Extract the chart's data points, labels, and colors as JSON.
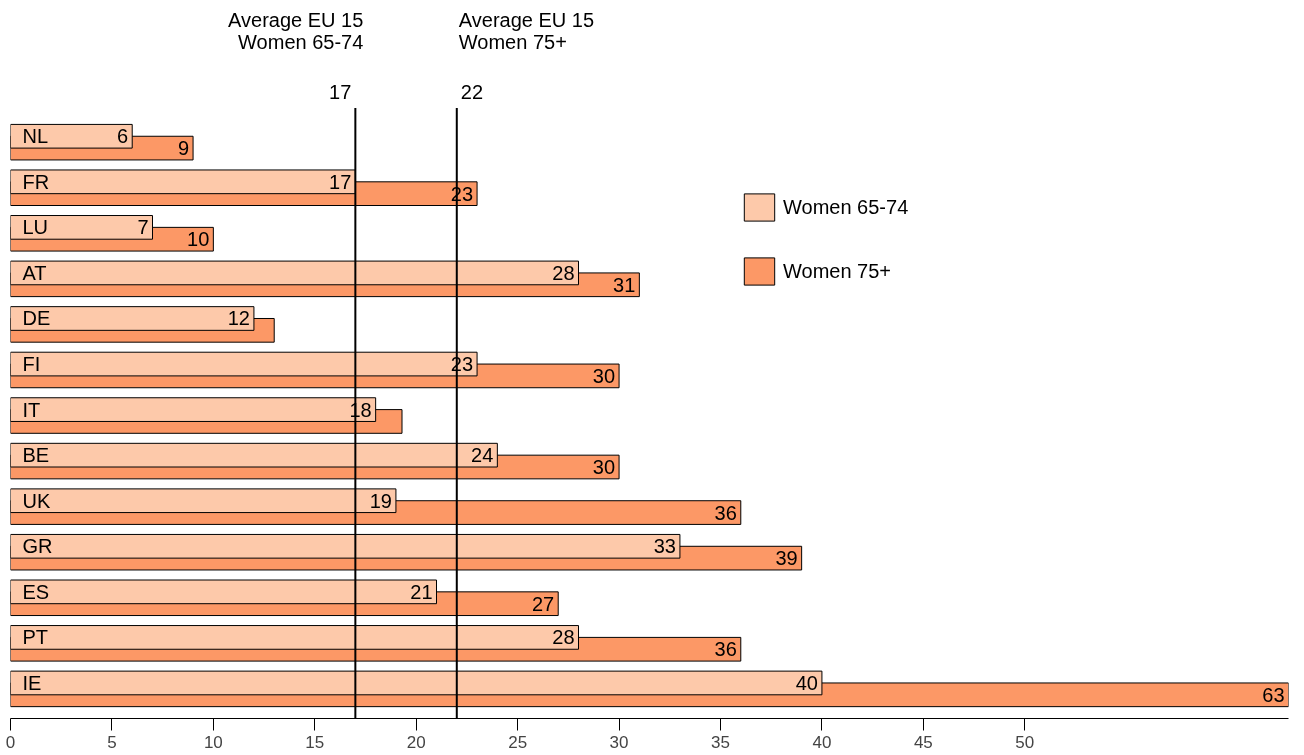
{
  "chart_data": {
    "type": "bar",
    "orientation": "horizontal",
    "categories": [
      "NL",
      "FR",
      "LU",
      "AT",
      "DE",
      "FI",
      "IT",
      "BE",
      "UK",
      "GR",
      "ES",
      "PT",
      "IE"
    ],
    "series": [
      {
        "name": "Women 65-74",
        "color": "#fdc9aa",
        "values": [
          6,
          17,
          7,
          28,
          12,
          23,
          18,
          24,
          19,
          33,
          21,
          28,
          40
        ],
        "value_labels": [
          "6",
          "17",
          "7",
          "28",
          "12",
          "23",
          "18",
          "24",
          "19",
          "33",
          "21",
          "28",
          "40"
        ]
      },
      {
        "name": "Women 75+",
        "color": "#fc9866",
        "values": [
          9,
          23,
          10,
          31,
          13,
          30,
          19.3,
          30,
          36,
          39,
          27,
          36,
          63
        ],
        "value_labels": [
          "9",
          "23",
          "10",
          "31",
          null,
          "30",
          null,
          "30",
          "36",
          "39",
          "27",
          "36",
          "63"
        ]
      }
    ],
    "xlim": [
      0,
      63
    ],
    "xticks": [
      0,
      5,
      10,
      15,
      20,
      25,
      30,
      35,
      40,
      45,
      50
    ],
    "ref_lines": [
      {
        "axis": "x",
        "value": 17,
        "label": "Average EU 15\nWomen 65-74",
        "color": "#000000"
      },
      {
        "axis": "x",
        "value": 22,
        "label": "Average EU 15\nWomen 75+",
        "color": "#000000"
      }
    ],
    "annotations": [
      "17",
      "22"
    ],
    "grid": false,
    "legend": "top right"
  }
}
